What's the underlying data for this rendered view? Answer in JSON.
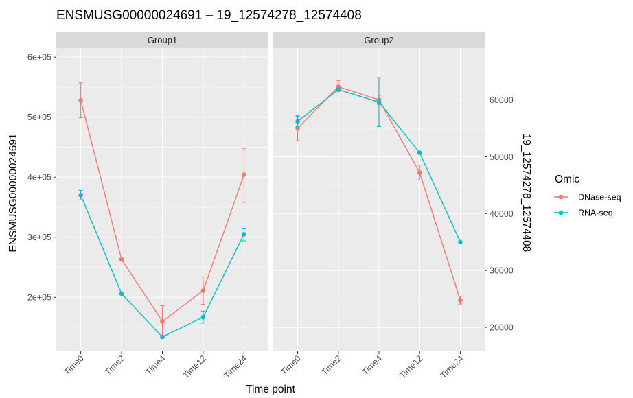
{
  "chart_data": {
    "type": "line",
    "title": "ENSMUSG00000024691 – 19_12574278_12574408",
    "xlabel": "Time point",
    "ylabel_left": "ENSMUSG00000024691",
    "ylabel_right": "19_12574278_12574408",
    "categories": [
      "Time0",
      "Time2",
      "Time4",
      "Time12",
      "Time24"
    ],
    "facets": [
      "Group1",
      "Group2"
    ],
    "left_axis": {
      "ticks": [
        200000,
        300000,
        400000,
        500000,
        600000
      ],
      "tick_labels": [
        "2e+05",
        "3e+05",
        "4e+05",
        "5e+05",
        "6e+05"
      ],
      "ylim": [
        110000,
        615000
      ]
    },
    "right_axis": {
      "ticks": [
        20000,
        30000,
        40000,
        50000,
        60000
      ],
      "tick_labels": [
        "20000",
        "30000",
        "40000",
        "50000",
        "60000"
      ],
      "ylim": [
        15800,
        69100
      ]
    },
    "legend": {
      "title": "Omic",
      "placement": "right",
      "entries": [
        "DNase-seq",
        "RNA-seq"
      ]
    },
    "grid": true,
    "panels": [
      {
        "facet": "Group1",
        "axis": "left",
        "series": [
          {
            "name": "DNase-seq",
            "color": "#F8766D",
            "values": [
              528000,
              263000,
              160000,
              211000,
              404000
            ],
            "err_low": [
              499000,
              263000,
              133000,
              188000,
              358000
            ],
            "err_high": [
              557000,
              263000,
              186000,
              234000,
              448000
            ]
          },
          {
            "name": "RNA-seq",
            "color": "#00BFC4",
            "values": [
              370000,
              206000,
              134000,
              167000,
              305000
            ],
            "err_low": [
              362000,
              206000,
              132000,
              157000,
              294000
            ],
            "err_high": [
              378000,
              206000,
              136000,
              177000,
              315000
            ]
          }
        ]
      },
      {
        "facet": "Group2",
        "axis": "right",
        "series": [
          {
            "name": "DNase-seq",
            "color": "#F8766D",
            "values": [
              55000,
              62300,
              60000,
              47200,
              24800
            ],
            "err_low": [
              52800,
              61200,
              59200,
              45900,
              24100
            ],
            "err_high": [
              57200,
              63400,
              60800,
              48500,
              25500
            ]
          },
          {
            "name": "RNA-seq",
            "color": "#00BFC4",
            "values": [
              56200,
              61800,
              59600,
              50700,
              35000
            ],
            "err_low": [
              55300,
              61500,
              55300,
              50700,
              35000
            ],
            "err_high": [
              57100,
              62100,
              63900,
              50700,
              35000
            ]
          }
        ]
      }
    ]
  }
}
